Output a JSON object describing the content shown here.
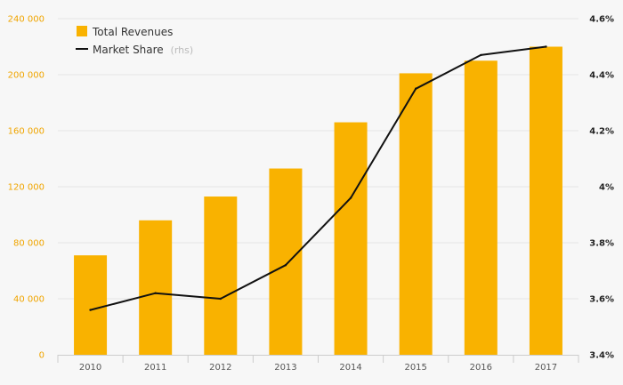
{
  "chart_data": {
    "type": "bar",
    "categories": [
      "2010",
      "2011",
      "2012",
      "2013",
      "2014",
      "2015",
      "2016",
      "2017"
    ],
    "series": [
      {
        "name": "Total Revenues",
        "axis": "left",
        "type": "bar",
        "values": [
          71000,
          96000,
          113000,
          133000,
          166000,
          201000,
          210000,
          220000
        ]
      },
      {
        "name": "Market Share",
        "axis": "right",
        "type": "line",
        "values": [
          3.56,
          3.62,
          3.6,
          3.72,
          3.96,
          4.35,
          4.47,
          4.5
        ]
      }
    ],
    "y_left": {
      "min": 0,
      "max": 240000,
      "ticks": [
        0,
        40000,
        80000,
        120000,
        160000,
        200000,
        240000
      ],
      "tick_labels": [
        "0",
        "40 000",
        "80 000",
        "120 000",
        "160 000",
        "200 000",
        "240 000"
      ]
    },
    "y_right": {
      "min": 3.4,
      "max": 4.6,
      "ticks": [
        3.4,
        3.6,
        3.8,
        4.0,
        4.2,
        4.4,
        4.6
      ],
      "tick_labels": [
        "3.4%",
        "3.6%",
        "3.8%",
        "4%",
        "4.2%",
        "4.4%",
        "4.6%"
      ]
    },
    "legend": {
      "placement": "top-left",
      "items": [
        {
          "label": "Total Revenues",
          "note": "",
          "symbol": "square"
        },
        {
          "label": "Market Share",
          "note": "(rhs)",
          "symbol": "line"
        }
      ]
    },
    "colors": {
      "bars": "#f9b200",
      "line": "#111111",
      "grid": "#e4e4e4",
      "left_ticks": "#f0a500"
    }
  }
}
